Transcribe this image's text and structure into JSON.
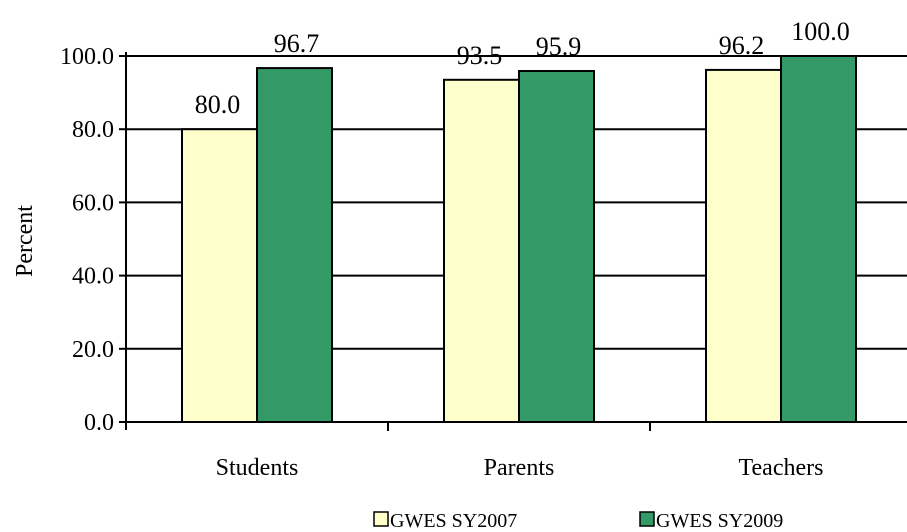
{
  "chart_data": {
    "type": "bar",
    "categories": [
      "Students",
      "Parents",
      "Teachers"
    ],
    "series": [
      {
        "name": "GWES SY2007",
        "values": [
          80.0,
          93.5,
          96.2
        ],
        "color": "#ffffcc"
      },
      {
        "name": "GWES SY2009",
        "values": [
          96.7,
          95.9,
          100.0
        ],
        "color": "#339966"
      }
    ],
    "data_labels": [
      [
        "80.0",
        "93.5",
        "96.2"
      ],
      [
        "96.7",
        "95.9",
        "100.0"
      ]
    ],
    "ylabel": "Percent",
    "ylim": [
      0,
      100
    ],
    "yticks": [
      0,
      20,
      40,
      60,
      80,
      100
    ],
    "ytick_labels": [
      "0.0",
      "20.0",
      "40.0",
      "60.0",
      "80.0",
      "100.0"
    ],
    "grid": true,
    "legend_position": "bottom"
  }
}
